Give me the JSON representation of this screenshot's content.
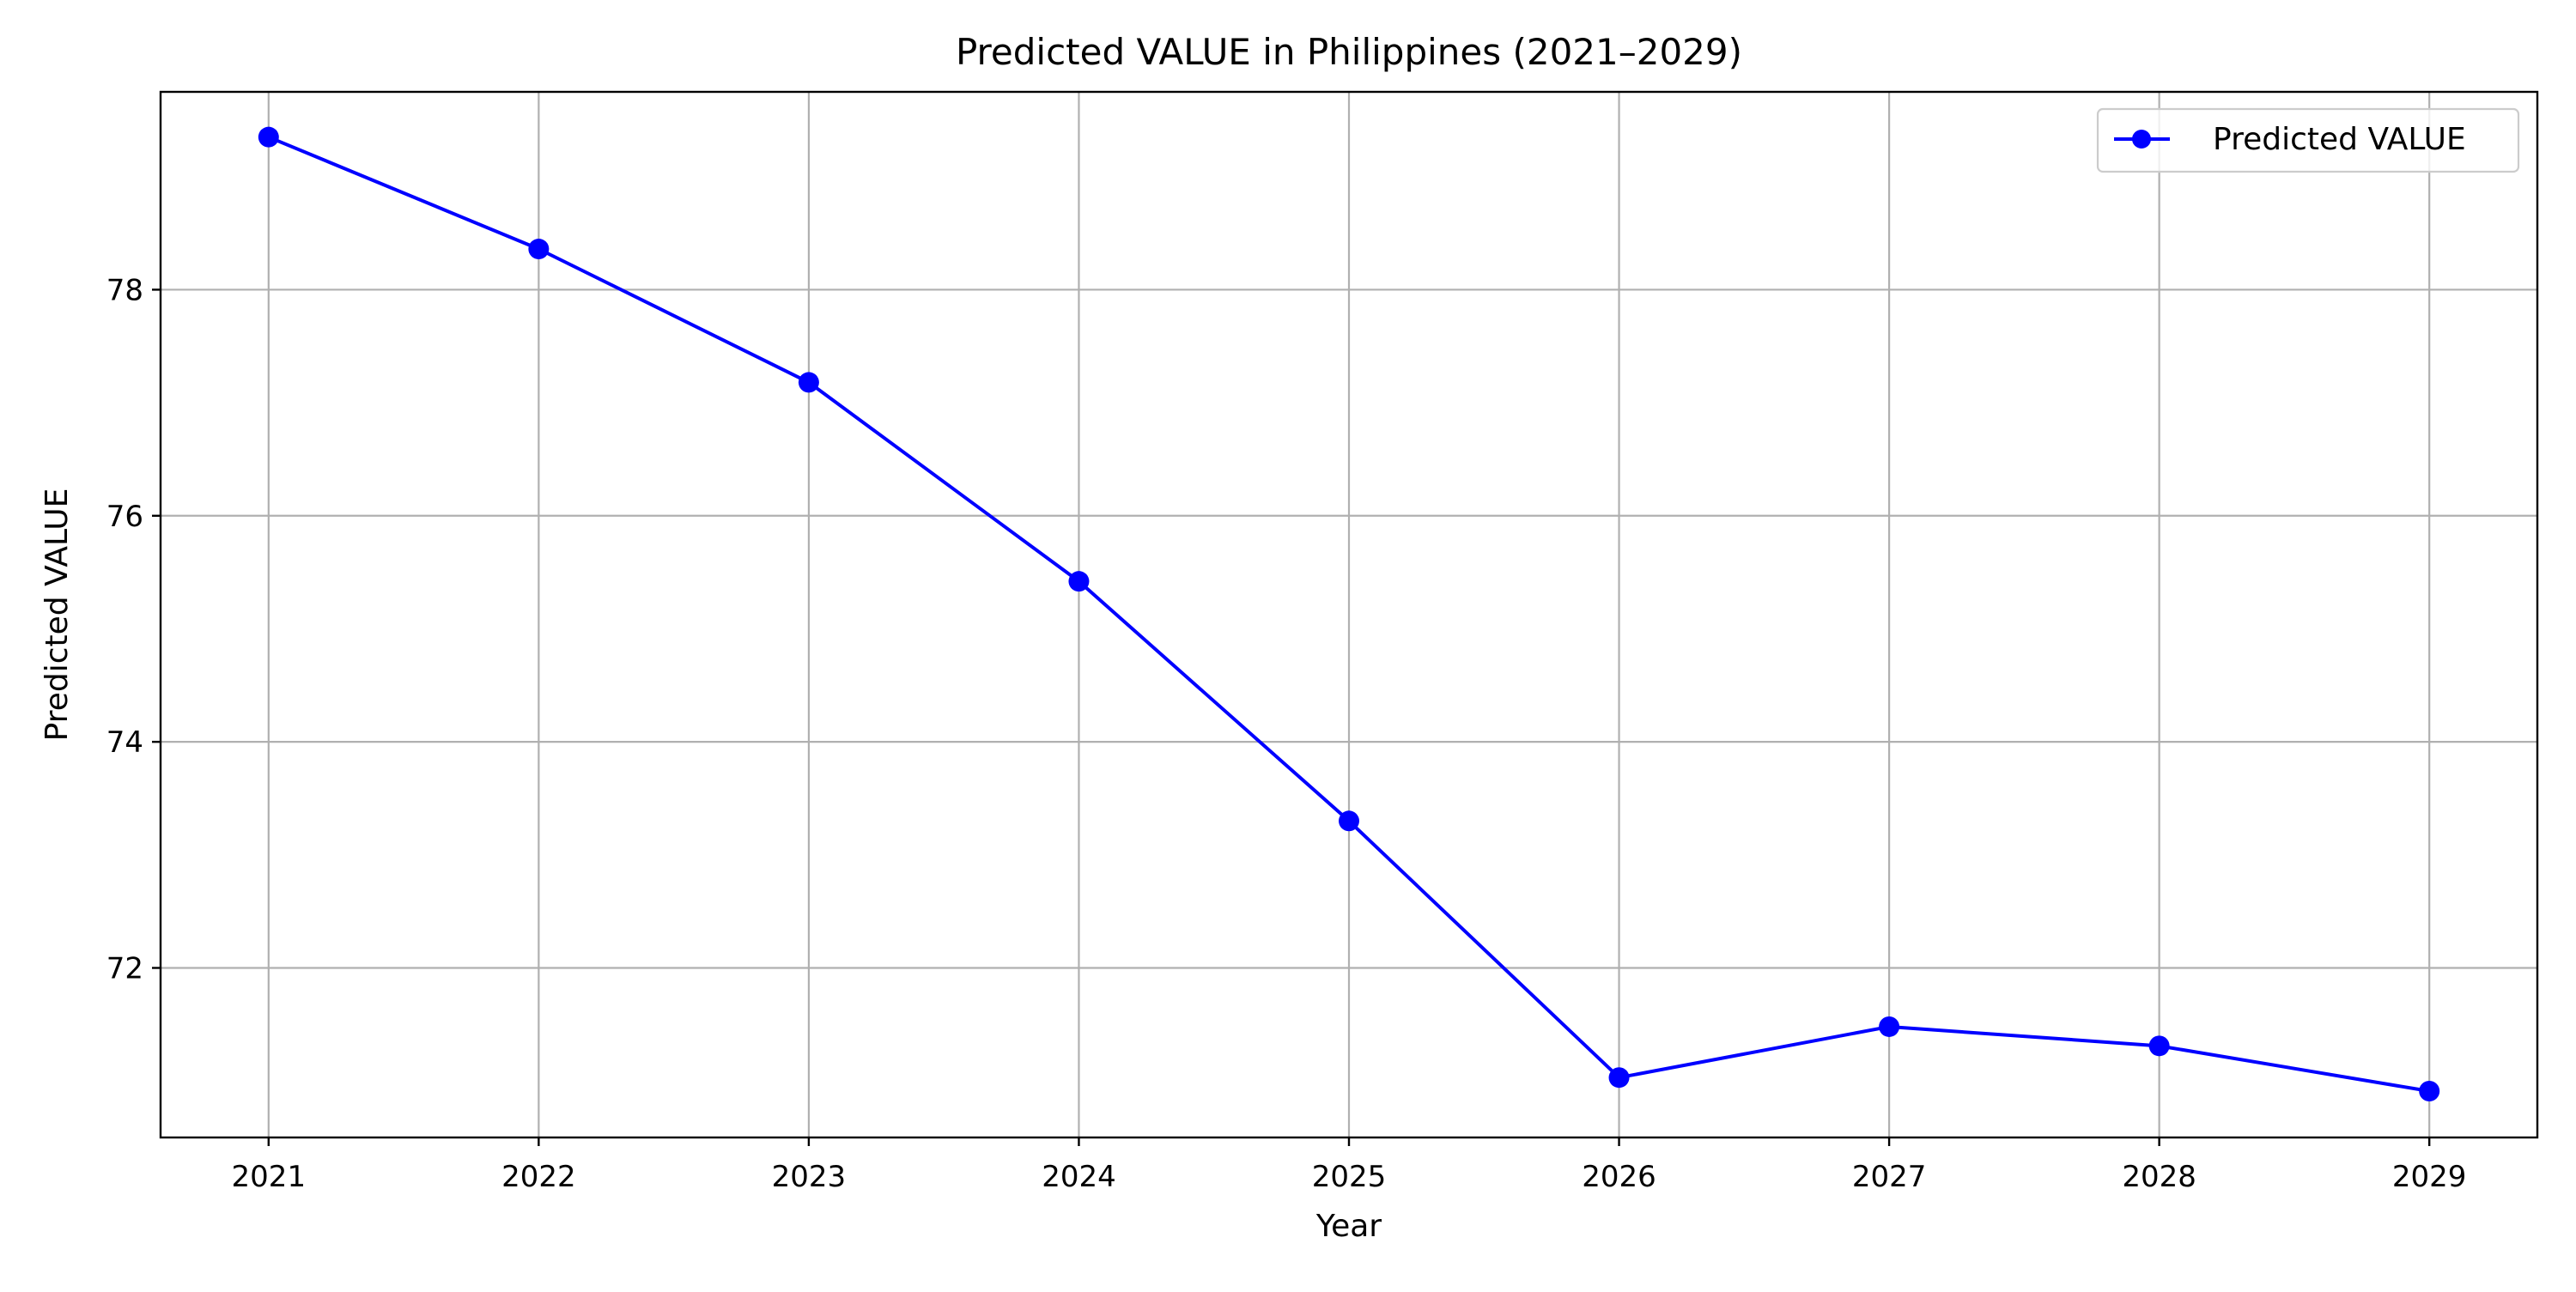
{
  "chart_data": {
    "type": "line",
    "title": "Predicted VALUE in Philippines (2021–2029)",
    "xlabel": "Year",
    "ylabel": "Predicted VALUE",
    "x": [
      2021,
      2022,
      2023,
      2024,
      2025,
      2026,
      2027,
      2028,
      2029
    ],
    "series": [
      {
        "name": "Predicted VALUE",
        "color": "#0000ff",
        "marker": "circle",
        "values": [
          79.35,
          78.36,
          77.18,
          75.42,
          73.3,
          71.03,
          71.48,
          71.31,
          70.91
        ]
      }
    ],
    "xticks": [
      "2021",
      "2022",
      "2023",
      "2024",
      "2025",
      "2026",
      "2027",
      "2028",
      "2029"
    ],
    "yticks": [
      72,
      74,
      76,
      78
    ],
    "xlim": [
      2020.6,
      2029.4
    ],
    "ylim": [
      70.5,
      79.75
    ],
    "grid": true,
    "legend_position": "top-right"
  }
}
